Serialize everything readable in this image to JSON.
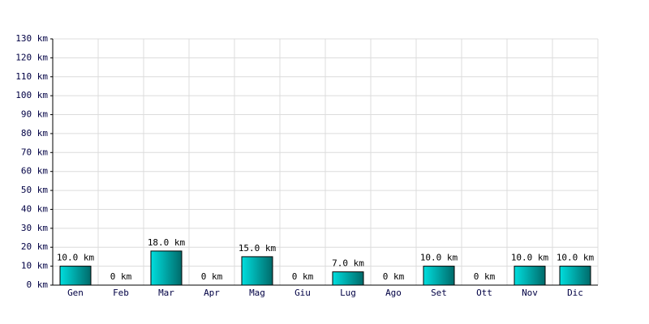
{
  "chart_data": {
    "type": "bar",
    "categories": [
      "Gen",
      "Feb",
      "Mar",
      "Apr",
      "Mag",
      "Giu",
      "Lug",
      "Ago",
      "Set",
      "Ott",
      "Nov",
      "Dic"
    ],
    "values": [
      10,
      0,
      18,
      0,
      15,
      0,
      7,
      0,
      10,
      0,
      10,
      10
    ],
    "value_labels": [
      "10.0 km",
      "0 km",
      "18.0 km",
      "0 km",
      "15.0 km",
      "0 km",
      "7.0 km",
      "0 km",
      "10.0 km",
      "0 km",
      "10.0 km",
      "10.0 km"
    ],
    "color": "#00dede",
    "ylim": [
      0,
      130
    ],
    "yticks": [
      {
        "value": 0,
        "label": "0 km"
      },
      {
        "value": 10,
        "label": "10 km"
      },
      {
        "value": 20,
        "label": "20 km"
      },
      {
        "value": 30,
        "label": "30 km"
      },
      {
        "value": 40,
        "label": "40 km"
      },
      {
        "value": 50,
        "label": "50 km"
      },
      {
        "value": 60,
        "label": "60 km"
      },
      {
        "value": 70,
        "label": "70 km"
      },
      {
        "value": 80,
        "label": "80 km"
      },
      {
        "value": 90,
        "label": "90 km"
      },
      {
        "value": 100,
        "label": "100 km"
      },
      {
        "value": 110,
        "label": "110 km"
      },
      {
        "value": 120,
        "label": "120 km"
      },
      {
        "value": 130,
        "label": "130 km"
      }
    ],
    "grid": true
  }
}
